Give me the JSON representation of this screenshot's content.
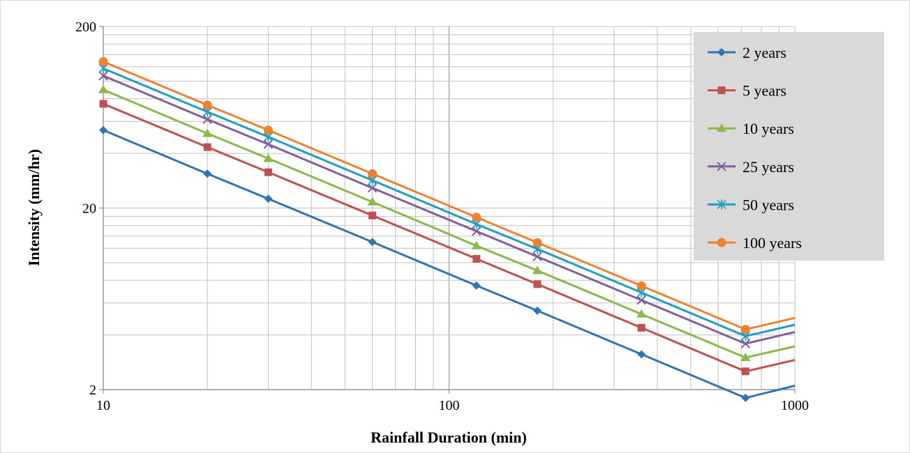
{
  "chart_data": {
    "type": "line",
    "xlabel": "Rainfall Duration (min)",
    "ylabel": "Intensity (mm/hr)",
    "x_scale": "log",
    "y_scale": "log",
    "xlim": [
      10,
      1000
    ],
    "ylim": [
      2,
      200
    ],
    "x_ticks": [
      "10",
      "100",
      "1000"
    ],
    "y_ticks": [
      "2",
      "20",
      "200"
    ],
    "grid": true,
    "legend_position": "top-right",
    "x": [
      10,
      20,
      30,
      60,
      120,
      180,
      360,
      720,
      1000
    ],
    "series": [
      {
        "name": "2 years",
        "marker": "diamond",
        "color": "#2e75b6",
        "values": [
          53.7,
          30.9,
          22.5,
          13.0,
          7.48,
          5.44,
          3.13,
          1.8,
          2.1
        ]
      },
      {
        "name": "5 years",
        "marker": "square",
        "color": "#c0504d",
        "values": [
          75.0,
          43.3,
          31.5,
          18.2,
          10.5,
          7.61,
          4.38,
          2.52,
          2.91
        ]
      },
      {
        "name": "10 years",
        "marker": "triangle",
        "color": "#8cb946",
        "values": [
          89.7,
          51.5,
          37.5,
          21.6,
          12.4,
          9.05,
          5.21,
          3.0,
          3.46
        ]
      },
      {
        "name": "25 years",
        "marker": "x",
        "color": "#7f5f9f",
        "values": [
          107.0,
          61.6,
          44.9,
          25.8,
          14.9,
          10.8,
          6.22,
          3.58,
          4.15
        ]
      },
      {
        "name": "50 years",
        "marker": "star",
        "color": "#1e9fbf",
        "values": [
          117.5,
          67.7,
          49.3,
          28.4,
          16.3,
          11.9,
          6.85,
          3.94,
          4.55
        ]
      },
      {
        "name": "100 years",
        "marker": "circle",
        "color": "#f0822f",
        "values": [
          128.0,
          73.8,
          53.7,
          30.9,
          17.8,
          12.9,
          7.46,
          4.29,
          4.96
        ]
      }
    ]
  }
}
